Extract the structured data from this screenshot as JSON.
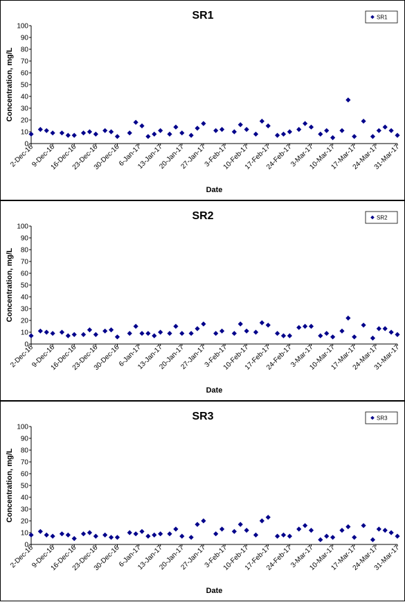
{
  "chart_data": [
    {
      "type": "scatter",
      "title": "SR1",
      "xlabel": "Date",
      "ylabel": "Concentration, mg/L",
      "ylim": [
        0,
        100
      ],
      "yticks": [
        "0",
        "10",
        "20",
        "30",
        "40",
        "50",
        "60",
        "70",
        "80",
        "90",
        "100"
      ],
      "xlim": [
        "2016-12-02",
        "2017-03-31"
      ],
      "xticks": [
        "2-Dec-16",
        "9-Dec-16",
        "16-Dec-16",
        "23-Dec-16",
        "30-Dec-16",
        "6-Jan-17",
        "13-Jan-17",
        "20-Jan-17",
        "27-Jan-17",
        "3-Feb-17",
        "10-Feb-17",
        "17-Feb-17",
        "24-Feb-17",
        "3-Mar-17",
        "10-Mar-17",
        "17-Mar-17",
        "24-Mar-17",
        "31-Mar-17"
      ],
      "grid": false,
      "legend": "top-right",
      "marker_color": "#00008b",
      "series": [
        {
          "name": "SR1",
          "x": [
            "2016-12-02",
            "2016-12-05",
            "2016-12-07",
            "2016-12-09",
            "2016-12-12",
            "2016-12-14",
            "2016-12-16",
            "2016-12-19",
            "2016-12-21",
            "2016-12-23",
            "2016-12-26",
            "2016-12-28",
            "2016-12-30",
            "2017-01-03",
            "2017-01-05",
            "2017-01-07",
            "2017-01-09",
            "2017-01-11",
            "2017-01-13",
            "2017-01-16",
            "2017-01-18",
            "2017-01-20",
            "2017-01-23",
            "2017-01-25",
            "2017-01-27",
            "2017-01-31",
            "2017-02-02",
            "2017-02-06",
            "2017-02-08",
            "2017-02-10",
            "2017-02-13",
            "2017-02-15",
            "2017-02-17",
            "2017-02-20",
            "2017-02-22",
            "2017-02-24",
            "2017-02-27",
            "2017-03-01",
            "2017-03-03",
            "2017-03-06",
            "2017-03-08",
            "2017-03-10",
            "2017-03-13",
            "2017-03-15",
            "2017-03-17",
            "2017-03-20",
            "2017-03-23",
            "2017-03-25",
            "2017-03-27",
            "2017-03-29",
            "2017-03-31"
          ],
          "y": [
            8,
            12,
            11,
            9,
            9,
            7,
            7,
            9,
            10,
            8,
            11,
            10,
            6,
            9,
            18,
            15,
            6,
            8,
            11,
            8,
            14,
            9,
            7,
            13,
            17,
            11,
            12,
            10,
            16,
            12,
            8,
            19,
            15,
            7,
            8,
            10,
            12,
            17,
            14,
            8,
            11,
            5,
            11,
            37,
            6,
            19,
            6,
            11,
            14,
            11,
            7
          ]
        }
      ]
    },
    {
      "type": "scatter",
      "title": "SR2",
      "xlabel": "Date",
      "ylabel": "Concentration, mg/L",
      "ylim": [
        0,
        100
      ],
      "yticks": [
        "0",
        "10",
        "20",
        "30",
        "40",
        "50",
        "60",
        "70",
        "80",
        "90",
        "100"
      ],
      "xlim": [
        "2016-12-02",
        "2017-03-31"
      ],
      "xticks": [
        "2-Dec-16",
        "9-Dec-16",
        "16-Dec-16",
        "23-Dec-16",
        "30-Dec-16",
        "6-Jan-17",
        "13-Jan-17",
        "20-Jan-17",
        "27-Jan-17",
        "3-Feb-17",
        "10-Feb-17",
        "17-Feb-17",
        "24-Feb-17",
        "3-Mar-17",
        "10-Mar-17",
        "17-Mar-17",
        "24-Mar-17",
        "31-Mar-17"
      ],
      "grid": false,
      "legend": "top-right",
      "marker_color": "#00008b",
      "series": [
        {
          "name": "SR2",
          "x": [
            "2016-12-02",
            "2016-12-05",
            "2016-12-07",
            "2016-12-09",
            "2016-12-12",
            "2016-12-14",
            "2016-12-16",
            "2016-12-19",
            "2016-12-21",
            "2016-12-23",
            "2016-12-26",
            "2016-12-28",
            "2016-12-30",
            "2017-01-03",
            "2017-01-05",
            "2017-01-07",
            "2017-01-09",
            "2017-01-11",
            "2017-01-13",
            "2017-01-16",
            "2017-01-18",
            "2017-01-20",
            "2017-01-23",
            "2017-01-25",
            "2017-01-27",
            "2017-01-31",
            "2017-02-02",
            "2017-02-06",
            "2017-02-08",
            "2017-02-10",
            "2017-02-13",
            "2017-02-15",
            "2017-02-17",
            "2017-02-20",
            "2017-02-22",
            "2017-02-24",
            "2017-02-27",
            "2017-03-01",
            "2017-03-03",
            "2017-03-06",
            "2017-03-08",
            "2017-03-10",
            "2017-03-13",
            "2017-03-15",
            "2017-03-17",
            "2017-03-20",
            "2017-03-23",
            "2017-03-25",
            "2017-03-27",
            "2017-03-29",
            "2017-03-31"
          ],
          "y": [
            7,
            11,
            10,
            9,
            10,
            7,
            8,
            8,
            12,
            8,
            11,
            12,
            6,
            9,
            15,
            9,
            9,
            7,
            10,
            9,
            15,
            9,
            9,
            13,
            17,
            9,
            11,
            9,
            17,
            11,
            10,
            18,
            16,
            9,
            7,
            7,
            14,
            15,
            15,
            7,
            9,
            6,
            11,
            22,
            6,
            16,
            5,
            13,
            13,
            10,
            8
          ]
        }
      ]
    },
    {
      "type": "scatter",
      "title": "SR3",
      "xlabel": "Date",
      "ylabel": "Concentration, mg/L",
      "ylim": [
        0,
        100
      ],
      "yticks": [
        "0",
        "10",
        "20",
        "30",
        "40",
        "50",
        "60",
        "70",
        "80",
        "90",
        "100"
      ],
      "xlim": [
        "2016-12-02",
        "2017-03-31"
      ],
      "xticks": [
        "2-Dec-16",
        "9-Dec-16",
        "16-Dec-16",
        "23-Dec-16",
        "30-Dec-16",
        "6-Jan-17",
        "13-Jan-17",
        "20-Jan-17",
        "27-Jan-17",
        "3-Feb-17",
        "10-Feb-17",
        "17-Feb-17",
        "24-Feb-17",
        "3-Mar-17",
        "10-Mar-17",
        "17-Mar-17",
        "24-Mar-17",
        "31-Mar-17"
      ],
      "grid": false,
      "legend": "top-right",
      "marker_color": "#00008b",
      "series": [
        {
          "name": "SR3",
          "x": [
            "2016-12-02",
            "2016-12-05",
            "2016-12-07",
            "2016-12-09",
            "2016-12-12",
            "2016-12-14",
            "2016-12-16",
            "2016-12-19",
            "2016-12-21",
            "2016-12-23",
            "2016-12-26",
            "2016-12-28",
            "2016-12-30",
            "2017-01-03",
            "2017-01-05",
            "2017-01-07",
            "2017-01-09",
            "2017-01-11",
            "2017-01-13",
            "2017-01-16",
            "2017-01-18",
            "2017-01-20",
            "2017-01-23",
            "2017-01-25",
            "2017-01-27",
            "2017-01-31",
            "2017-02-02",
            "2017-02-06",
            "2017-02-08",
            "2017-02-10",
            "2017-02-13",
            "2017-02-15",
            "2017-02-17",
            "2017-02-20",
            "2017-02-22",
            "2017-02-24",
            "2017-02-27",
            "2017-03-01",
            "2017-03-03",
            "2017-03-06",
            "2017-03-08",
            "2017-03-10",
            "2017-03-13",
            "2017-03-15",
            "2017-03-17",
            "2017-03-20",
            "2017-03-23",
            "2017-03-25",
            "2017-03-27",
            "2017-03-29",
            "2017-03-31"
          ],
          "y": [
            8,
            11,
            8,
            7,
            9,
            8,
            5,
            9,
            10,
            7,
            8,
            6,
            6,
            10,
            9,
            11,
            7,
            8,
            9,
            9,
            13,
            7,
            6,
            17,
            20,
            9,
            13,
            11,
            17,
            12,
            8,
            20,
            23,
            7,
            8,
            7,
            13,
            16,
            12,
            4,
            7,
            6,
            12,
            15,
            6,
            16,
            4,
            13,
            12,
            10,
            7
          ]
        }
      ]
    }
  ]
}
